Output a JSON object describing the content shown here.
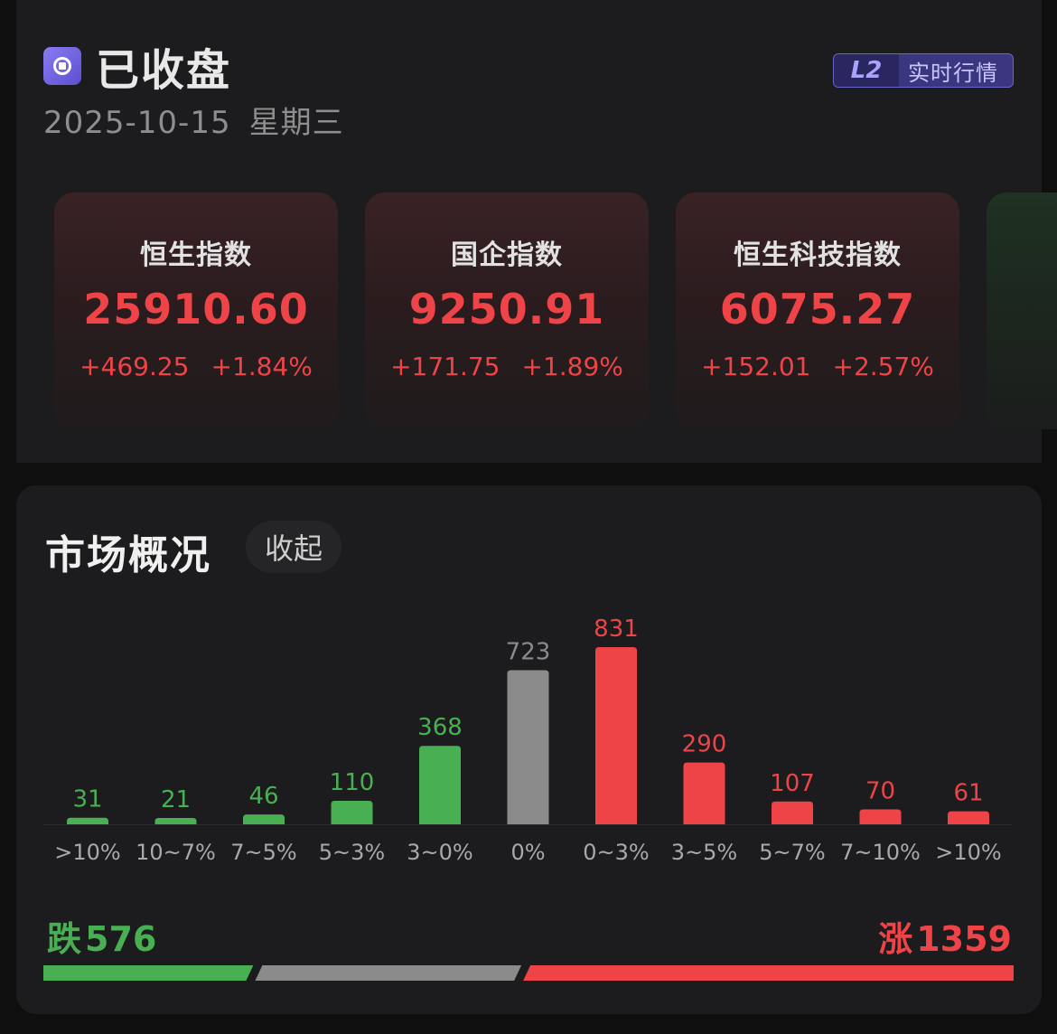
{
  "header": {
    "status": "已收盘",
    "date": "2025-10-15",
    "weekday": "星期三",
    "badge_tag": "L2",
    "badge_text": "实时行情"
  },
  "indices": [
    {
      "name": "恒生指数",
      "value": "25910.60",
      "change": "+469.25",
      "pct": "+1.84%"
    },
    {
      "name": "国企指数",
      "value": "9250.91",
      "change": "+171.75",
      "pct": "+1.89%"
    },
    {
      "name": "恒生科技指数",
      "value": "6075.27",
      "change": "+152.01",
      "pct": "+2.57%"
    }
  ],
  "market": {
    "title": "市场概况",
    "collapse_label": "收起",
    "fall_label": "跌",
    "fall_count": "576",
    "rise_label": "涨",
    "rise_count": "1359"
  },
  "colors": {
    "down": "#48b052",
    "flat": "#8b8b8b",
    "up": "#ee4347"
  },
  "chart_data": {
    "type": "bar",
    "categories": [
      ">10%",
      "10~7%",
      "7~5%",
      "5~3%",
      "3~0%",
      "0%",
      "0~3%",
      "3~5%",
      "5~7%",
      "7~10%",
      ">10%"
    ],
    "values": [
      31,
      21,
      46,
      110,
      368,
      723,
      831,
      290,
      107,
      70,
      61
    ],
    "groups": [
      "down",
      "down",
      "down",
      "down",
      "down",
      "flat",
      "up",
      "up",
      "up",
      "up",
      "up"
    ],
    "ylim": [
      0,
      831
    ]
  },
  "breadth": {
    "down": 576,
    "flat": 723,
    "up": 1359
  }
}
